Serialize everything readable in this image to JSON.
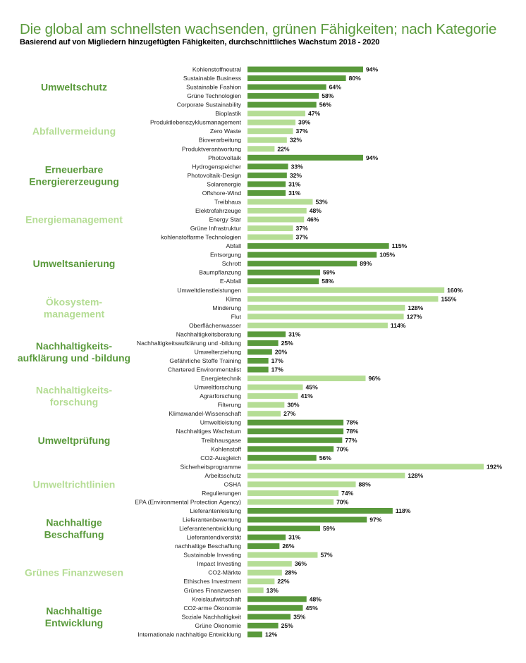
{
  "title": "Die global am schnellsten wachsenden, grünen Fähigkeiten; nach Kategorie",
  "subtitle": "Basierend auf von Migliedern hinzugefügten Fähigkeiten, durchschnittliches Wachstum 2018 - 2020",
  "colors": {
    "dark": "#5a9a3c",
    "light": "#b5dd95"
  },
  "chart_data": {
    "type": "bar",
    "orientation": "horizontal",
    "unit": "%",
    "xlim": [
      0,
      192
    ],
    "groups": [
      {
        "name": [
          "Umweltschutz"
        ],
        "shade": "dark",
        "items": [
          {
            "label": "Kohlenstoffneutral",
            "value": 94
          },
          {
            "label": "Sustainable Business",
            "value": 80
          },
          {
            "label": "Sustainable Fashion",
            "value": 64
          },
          {
            "label": "Grüne Technologien",
            "value": 58
          },
          {
            "label": "Corporate Sustainability",
            "value": 56
          }
        ]
      },
      {
        "name": [
          "Abfallvermeidung"
        ],
        "shade": "light",
        "items": [
          {
            "label": "Bioplastik",
            "value": 47
          },
          {
            "label": "Produktlebenszyklusmanagement",
            "value": 39
          },
          {
            "label": "Zero Waste",
            "value": 37
          },
          {
            "label": "Bioverarbeitung",
            "value": 32
          },
          {
            "label": "Produktverantwortung",
            "value": 22
          }
        ]
      },
      {
        "name": [
          "Erneuerbare",
          "Energiererzeugung"
        ],
        "shade": "dark",
        "items": [
          {
            "label": "Photovoltaik",
            "value": 94
          },
          {
            "label": "Hydrogenspeicher",
            "value": 33
          },
          {
            "label": "Photovoltaik-Design",
            "value": 32
          },
          {
            "label": "Solarenergie",
            "value": 31
          },
          {
            "label": "Offshore-Wind",
            "value": 31
          }
        ]
      },
      {
        "name": [
          "Energiemanagement"
        ],
        "shade": "light",
        "items": [
          {
            "label": "Treibhaus",
            "value": 53
          },
          {
            "label": "Elektrofahrzeuge",
            "value": 48
          },
          {
            "label": "Energy Star",
            "value": 46
          },
          {
            "label": "Grüne Infrastruktur",
            "value": 37
          },
          {
            "label": "kohlenstoffarme Technologien",
            "value": 37
          }
        ]
      },
      {
        "name": [
          "Umweltsanierung"
        ],
        "shade": "dark",
        "items": [
          {
            "label": "Abfall",
            "value": 115
          },
          {
            "label": "Entsorgung",
            "value": 105
          },
          {
            "label": "Schrott",
            "value": 89
          },
          {
            "label": "Baumpflanzung",
            "value": 59
          },
          {
            "label": "E-Abfall",
            "value": 58
          }
        ]
      },
      {
        "name": [
          "Ökosystem-",
          "management"
        ],
        "shade": "light",
        "items": [
          {
            "label": "Umweltdienstleistungen",
            "value": 160
          },
          {
            "label": "Klima",
            "value": 155
          },
          {
            "label": "Minderung",
            "value": 128
          },
          {
            "label": "Flut",
            "value": 127
          },
          {
            "label": "Oberflächenwasser",
            "value": 114
          }
        ]
      },
      {
        "name": [
          "Nachhaltigkeits-",
          "aufklärung und -bildung"
        ],
        "shade": "dark",
        "items": [
          {
            "label": "Nachhaltigkeitsberatung",
            "value": 31
          },
          {
            "label": "Nachhaltigkeitsaufklärung und -bildung",
            "value": 25
          },
          {
            "label": "Umwelterziehung",
            "value": 20
          },
          {
            "label": "Gefährliche Stoffe Training",
            "value": 17
          },
          {
            "label": "Chartered Environmentalist",
            "value": 17
          }
        ]
      },
      {
        "name": [
          "Nachhaltigkeits-",
          "forschung"
        ],
        "shade": "light",
        "items": [
          {
            "label": "Energietechnik",
            "value": 96
          },
          {
            "label": "Umweltforschung",
            "value": 45
          },
          {
            "label": "Agrarforschung",
            "value": 41
          },
          {
            "label": "Filterung",
            "value": 30
          },
          {
            "label": "Klimawandel-Wissenschaft",
            "value": 27
          }
        ]
      },
      {
        "name": [
          "Umweltprüfung"
        ],
        "shade": "dark",
        "items": [
          {
            "label": "Umweltleistung",
            "value": 78
          },
          {
            "label": "Nachhaltiges Wachstum",
            "value": 78
          },
          {
            "label": "Treibhausgase",
            "value": 77
          },
          {
            "label": "Kohlenstoff",
            "value": 70
          },
          {
            "label": "CO2-Ausgleich",
            "value": 56
          }
        ]
      },
      {
        "name": [
          "Umweltrichtlinien"
        ],
        "shade": "light",
        "items": [
          {
            "label": "Sicherheitsprogramme",
            "value": 192
          },
          {
            "label": "Arbeitsschutz",
            "value": 128
          },
          {
            "label": "OSHA",
            "value": 88
          },
          {
            "label": "Regulierungen",
            "value": 74
          },
          {
            "label": "EPA (Environmental Protection Agency)",
            "value": 70
          }
        ]
      },
      {
        "name": [
          "Nachhaltige",
          "Beschaffung"
        ],
        "shade": "dark",
        "items": [
          {
            "label": "Lieferantenleistung",
            "value": 118
          },
          {
            "label": "Lieferantenbewertung",
            "value": 97
          },
          {
            "label": "Lieferantenentwicklung",
            "value": 59
          },
          {
            "label": "Lieferantendiversität",
            "value": 31
          },
          {
            "label": "nachhaltige Beschaffung",
            "value": 26
          }
        ]
      },
      {
        "name": [
          "Grünes Finanzwesen"
        ],
        "shade": "light",
        "items": [
          {
            "label": "Sustainable Investing",
            "value": 57
          },
          {
            "label": "Impact Investing",
            "value": 36
          },
          {
            "label": "CO2-Märkte",
            "value": 28
          },
          {
            "label": "Ethisches Investment",
            "value": 22
          },
          {
            "label": "Grünes Finanzwesen",
            "value": 13
          }
        ]
      },
      {
        "name": [
          "Nachhaltige",
          "Entwicklung"
        ],
        "shade": "dark",
        "items": [
          {
            "label": "Kreislaufwirtschaft",
            "value": 48
          },
          {
            "label": "CO2-arme Ökonomie",
            "value": 45
          },
          {
            "label": "Soziale Nachhaltigkeit",
            "value": 35
          },
          {
            "label": "Grüne Ökonomie",
            "value": 25
          },
          {
            "label": "Internationale nachhaltige Entwicklung",
            "value": 12
          }
        ]
      }
    ]
  }
}
